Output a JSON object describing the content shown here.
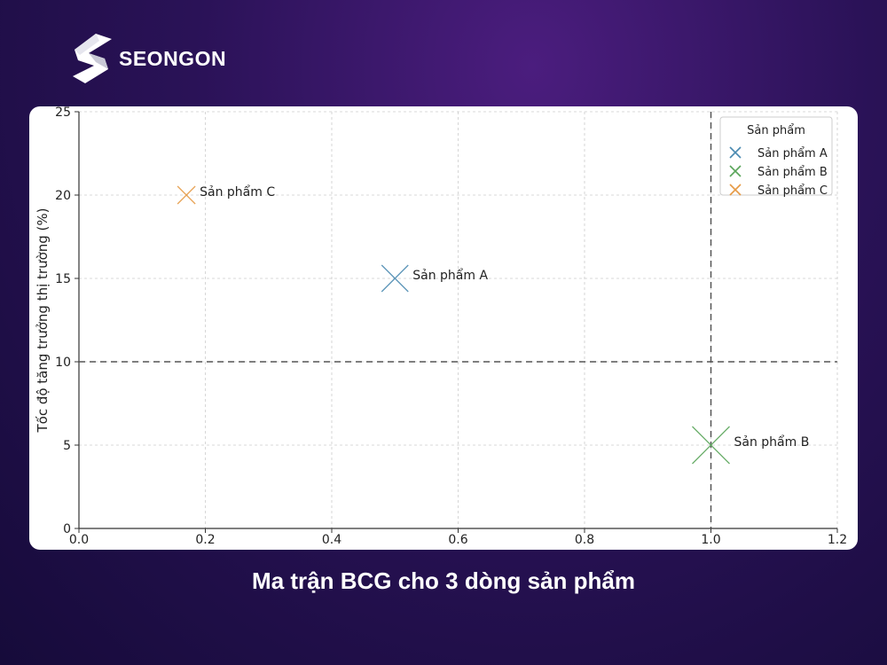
{
  "brand": {
    "name": "SEONGON"
  },
  "caption": "Ma trận BCG cho 3 dòng sản phẩm",
  "colors": {
    "series_a": "#4a8ab0",
    "series_b": "#5aa55a",
    "series_c": "#e69a45",
    "reference_line": "#555555",
    "grid": "#cccccc"
  },
  "chart_data": {
    "type": "scatter",
    "xlabel": "",
    "ylabel": "Tốc độ tăng trưởng thị trường (%)",
    "xlim": [
      0.0,
      1.2
    ],
    "ylim": [
      0,
      25
    ],
    "x_ticks": [
      "0.0",
      "0.2",
      "0.4",
      "0.6",
      "0.8",
      "1.0",
      "1.2"
    ],
    "y_ticks": [
      "0",
      "5",
      "10",
      "15",
      "20",
      "25"
    ],
    "grid": true,
    "reference_lines": {
      "x": 1.0,
      "y": 10
    },
    "legend": {
      "title": "Sản phẩm",
      "position": "top-right",
      "entries": [
        "Sản phẩm A",
        "Sản phẩm B",
        "Sản phẩm C"
      ]
    },
    "series": [
      {
        "name": "Sản phẩm A",
        "x": 0.5,
        "y": 15,
        "label": "Sản phẩm A",
        "size": "medium",
        "color": "#4a8ab0"
      },
      {
        "name": "Sản phẩm B",
        "x": 1.0,
        "y": 5,
        "label": "Sản phẩm B",
        "size": "large",
        "color": "#5aa55a"
      },
      {
        "name": "Sản phẩm C",
        "x": 0.17,
        "y": 20,
        "label": "Sản phẩm C",
        "size": "small",
        "color": "#e69a45"
      }
    ]
  }
}
